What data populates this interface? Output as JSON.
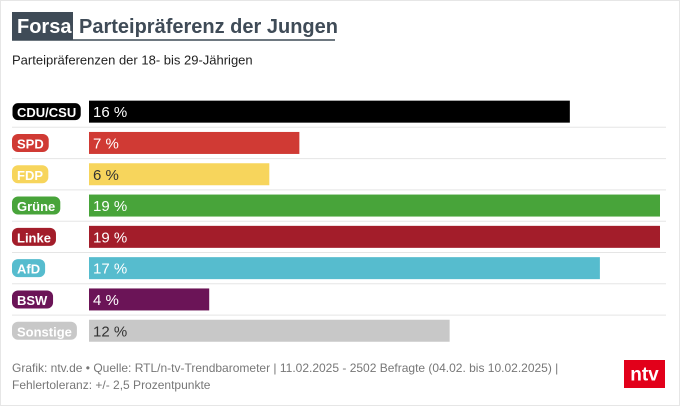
{
  "chart_data": {
    "type": "bar",
    "publisher": "Forsa",
    "title": "Parteipräferenz der Jungen",
    "subtitle": "Parteipräferenzen der 18- bis 29-Jährigen",
    "categories": [
      "CDU/CSU",
      "SPD",
      "FDP",
      "Grüne",
      "Linke",
      "AfD",
      "BSW",
      "Sonstige"
    ],
    "values": [
      16,
      7,
      6,
      19,
      19,
      17,
      4,
      12
    ],
    "value_labels": [
      "16 %",
      "7 %",
      "6 %",
      "19 %",
      "19 %",
      "17 %",
      "4 %",
      "12 %"
    ],
    "colors": [
      "#000000",
      "#d03a34",
      "#f7d55c",
      "#48a43a",
      "#a31d2a",
      "#56bcce",
      "#6b1457",
      "#c8c8c8"
    ],
    "source": "Grafik: ntv.de • Quelle: RTL/n-tv-Trendbarometer | 11.02.2025 - 2502 Befragte (04.02. bis 10.02.2025) | Fehlertoleranz: +/- 2,5 Prozentpunkte",
    "logo": "ntv"
  }
}
